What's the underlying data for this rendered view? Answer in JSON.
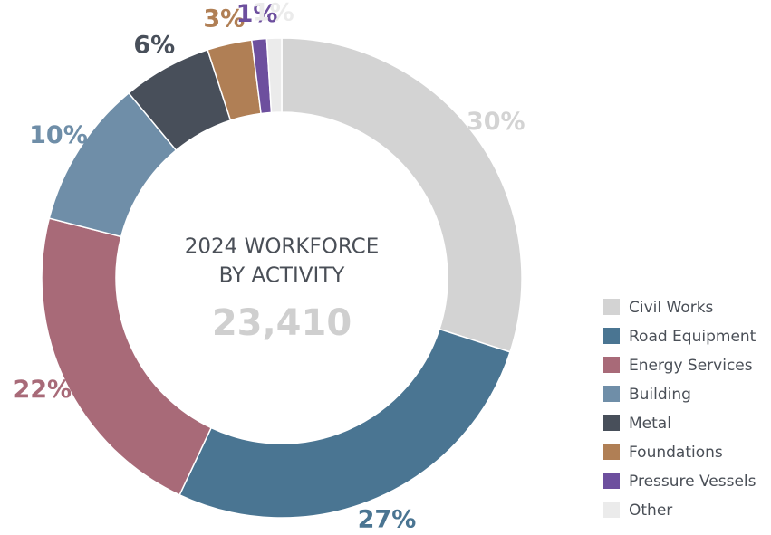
{
  "chart_data": {
    "type": "donut",
    "title_lines": [
      "2024 WORKFORCE",
      "BY ACTIVITY"
    ],
    "center_value": "23,410",
    "categories": [
      "Civil Works",
      "Road Equipment",
      "Energy Services",
      "Building",
      "Metal",
      "Foundations",
      "Pressure Vessels",
      "Other"
    ],
    "values": [
      30,
      27,
      22,
      10,
      6,
      3,
      1,
      1
    ],
    "value_labels": [
      "30%",
      "27%",
      "22%",
      "10%",
      "6%",
      "3%",
      "1%",
      "1%"
    ],
    "colors": [
      "#d3d3d3",
      "#4a7592",
      "#a86a78",
      "#6f8ea8",
      "#484f5a",
      "#b07f55",
      "#6d4f9e",
      "#ebebeb"
    ],
    "legend": "right"
  }
}
